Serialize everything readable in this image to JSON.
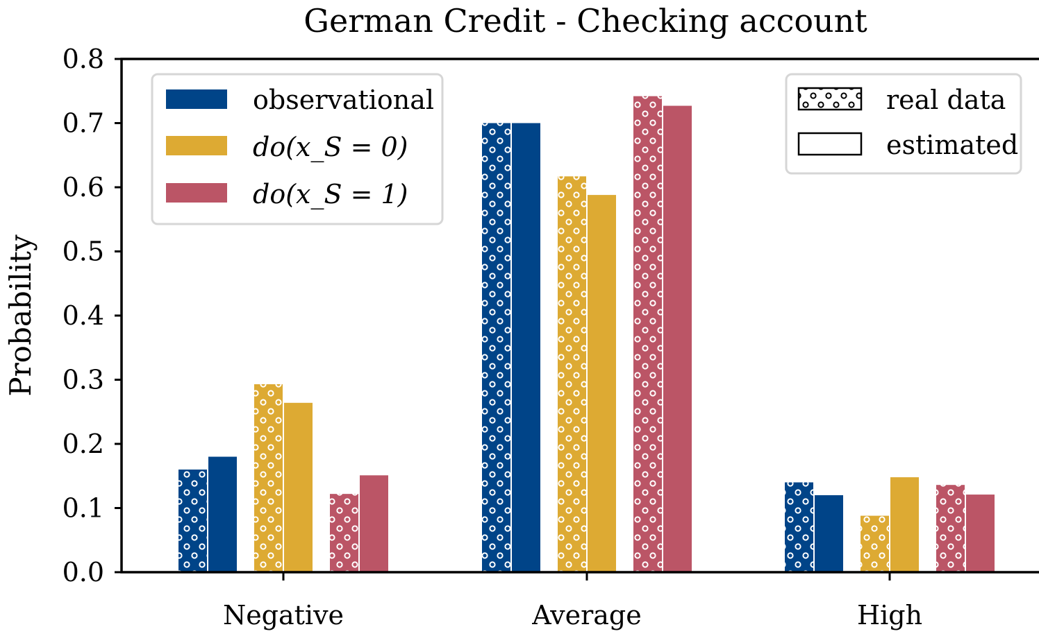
{
  "chart_data": {
    "type": "bar",
    "title": "German Credit - Checking account",
    "ylabel": "Probability",
    "xlabel": "",
    "ylim": [
      0,
      0.8
    ],
    "yticks": [
      0.0,
      0.1,
      0.2,
      0.3,
      0.4,
      0.5,
      0.6,
      0.7,
      0.8
    ],
    "ytick_labels": [
      "0.0",
      "0.1",
      "0.2",
      "0.3",
      "0.4",
      "0.5",
      "0.6",
      "0.7",
      "0.8"
    ],
    "categories": [
      "Negative",
      "Average",
      "High"
    ],
    "grid": false,
    "series": [
      {
        "name": "observational",
        "color": "#004488",
        "real": [
          0.16,
          0.7,
          0.14
        ],
        "estimated": [
          0.18,
          0.7,
          0.12
        ]
      },
      {
        "name": "do(x_S = 0)",
        "color": "#DDAA33",
        "real": [
          0.293,
          0.617,
          0.088
        ],
        "estimated": [
          0.264,
          0.588,
          0.148
        ]
      },
      {
        "name": "do(x_S = 1)",
        "color": "#BB5566",
        "real": [
          0.122,
          0.742,
          0.136
        ],
        "estimated": [
          0.151,
          0.727,
          0.121
        ]
      }
    ],
    "legend_series": {
      "placement": "top-left",
      "entries": [
        {
          "text": "observational"
        },
        {
          "text": "do(x_S = 0)"
        },
        {
          "text": "do(x_S = 1)"
        }
      ]
    },
    "legend_hatch": {
      "placement": "top-right",
      "entries": [
        {
          "text": "real data",
          "style": "hatched"
        },
        {
          "text": "estimated",
          "style": "plain"
        }
      ]
    }
  }
}
